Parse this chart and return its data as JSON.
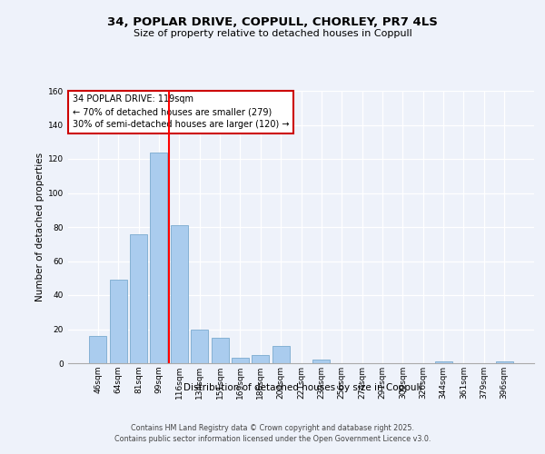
{
  "title": "34, POPLAR DRIVE, COPPULL, CHORLEY, PR7 4LS",
  "subtitle": "Size of property relative to detached houses in Coppull",
  "xlabel": "Distribution of detached houses by size in Coppull",
  "ylabel": "Number of detached properties",
  "categories": [
    "46sqm",
    "64sqm",
    "81sqm",
    "99sqm",
    "116sqm",
    "134sqm",
    "151sqm",
    "169sqm",
    "186sqm",
    "204sqm",
    "221sqm",
    "239sqm",
    "256sqm",
    "274sqm",
    "291sqm",
    "309sqm",
    "326sqm",
    "344sqm",
    "361sqm",
    "379sqm",
    "396sqm"
  ],
  "values": [
    16,
    49,
    76,
    124,
    81,
    20,
    15,
    3,
    5,
    10,
    0,
    2,
    0,
    0,
    0,
    0,
    0,
    1,
    0,
    0,
    1
  ],
  "bar_color": "#aaccee",
  "bar_edge_color": "#7aaacf",
  "red_line_x": 3.5,
  "red_line_label": "34 POPLAR DRIVE: 119sqm",
  "annotation_line2": "← 70% of detached houses are smaller (279)",
  "annotation_line3": "30% of semi-detached houses are larger (120) →",
  "annotation_box_color": "#ffffff",
  "annotation_box_edge": "#cc0000",
  "ylim": [
    0,
    160
  ],
  "yticks": [
    0,
    20,
    40,
    60,
    80,
    100,
    120,
    140,
    160
  ],
  "background_color": "#eef2fa",
  "footer_line1": "Contains HM Land Registry data © Crown copyright and database right 2025.",
  "footer_line2": "Contains public sector information licensed under the Open Government Licence v3.0."
}
